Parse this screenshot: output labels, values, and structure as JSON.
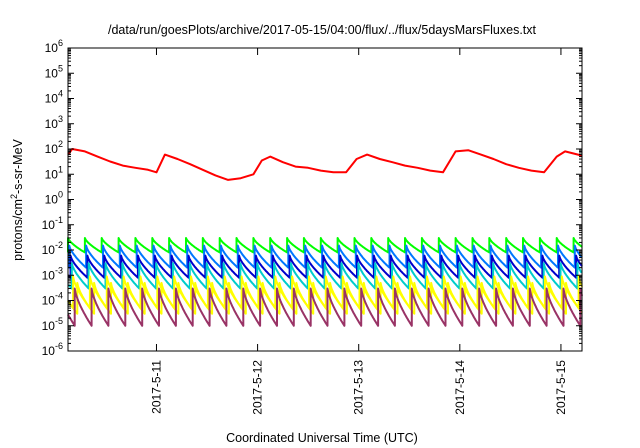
{
  "chart_data": {
    "type": "line",
    "title": "/data/run/goesPlots/archive/2017-05-15/04:00/flux/../flux/5daysMarsFluxes.txt",
    "xlabel": "Coordinated Universal Time (UTC)",
    "ylabel_parts": [
      "protons/cm",
      "2",
      "-s-sr-MeV"
    ],
    "yscale": "log",
    "ylim": [
      1e-06,
      1000000.0
    ],
    "y_ticks": [
      {
        "exp": "-6"
      },
      {
        "exp": "-5"
      },
      {
        "exp": "-4"
      },
      {
        "exp": "-3"
      },
      {
        "exp": "-2"
      },
      {
        "exp": "-1"
      },
      {
        "exp": "0"
      },
      {
        "exp": "1"
      },
      {
        "exp": "2"
      },
      {
        "exp": "3"
      },
      {
        "exp": "4"
      },
      {
        "exp": "5"
      },
      {
        "exp": "6"
      }
    ],
    "y_tick_base": "10",
    "xlim": [
      "2017-05-10T03:00",
      "2017-05-15T05:00"
    ],
    "x_ticks": [
      {
        "date": "2017-05-11T00:00",
        "label": "2017-5-11"
      },
      {
        "date": "2017-05-12T00:00",
        "label": "2017-5-12"
      },
      {
        "date": "2017-05-13T00:00",
        "label": "2017-5-13"
      },
      {
        "date": "2017-05-14T00:00",
        "label": "2017-5-14"
      },
      {
        "date": "2017-05-15T00:00",
        "label": "2017-5-15"
      }
    ],
    "grid": false,
    "legend": "none",
    "series": [
      {
        "color": "#ff0000",
        "style": "steps",
        "points": [
          [
            "2017-05-10T03:00",
            60
          ],
          [
            "2017-05-10T04:00",
            100
          ],
          [
            "2017-05-10T07:00",
            80
          ],
          [
            "2017-05-10T10:00",
            50
          ],
          [
            "2017-05-10T13:00",
            32
          ],
          [
            "2017-05-10T16:00",
            22
          ],
          [
            "2017-05-10T19:00",
            18
          ],
          [
            "2017-05-10T22:00",
            15
          ],
          [
            "2017-05-11T00:00",
            12
          ],
          [
            "2017-05-11T02:00",
            60
          ],
          [
            "2017-05-11T05:00",
            40
          ],
          [
            "2017-05-11T08:00",
            25
          ],
          [
            "2017-05-11T11:00",
            15
          ],
          [
            "2017-05-11T14:00",
            9
          ],
          [
            "2017-05-11T17:00",
            6
          ],
          [
            "2017-05-11T20:00",
            7
          ],
          [
            "2017-05-11T23:00",
            10
          ],
          [
            "2017-05-12T01:00",
            35
          ],
          [
            "2017-05-12T03:00",
            50
          ],
          [
            "2017-05-12T06:00",
            30
          ],
          [
            "2017-05-12T09:00",
            20
          ],
          [
            "2017-05-12T12:00",
            18
          ],
          [
            "2017-05-12T15:00",
            14
          ],
          [
            "2017-05-12T18:00",
            12
          ],
          [
            "2017-05-12T21:00",
            12
          ],
          [
            "2017-05-12T23:30",
            40
          ],
          [
            "2017-05-13T02:00",
            60
          ],
          [
            "2017-05-13T05:00",
            40
          ],
          [
            "2017-05-13T08:00",
            30
          ],
          [
            "2017-05-13T11:00",
            22
          ],
          [
            "2017-05-13T14:00",
            18
          ],
          [
            "2017-05-13T17:00",
            14
          ],
          [
            "2017-05-13T20:00",
            12
          ],
          [
            "2017-05-13T23:00",
            80
          ],
          [
            "2017-05-14T02:00",
            90
          ],
          [
            "2017-05-14T05:00",
            60
          ],
          [
            "2017-05-14T08:00",
            40
          ],
          [
            "2017-05-14T11:00",
            25
          ],
          [
            "2017-05-14T14:00",
            18
          ],
          [
            "2017-05-14T17:00",
            14
          ],
          [
            "2017-05-14T20:00",
            12
          ],
          [
            "2017-05-14T23:00",
            50
          ],
          [
            "2017-05-15T01:00",
            80
          ],
          [
            "2017-05-15T05:00",
            55
          ]
        ]
      },
      {
        "color": "#00ff00",
        "style": "sawtooth",
        "period_hours": 4,
        "peak": 0.03,
        "trough": 0.008,
        "phase_hours": 0
      },
      {
        "color": "#0077ff",
        "style": "sawtooth",
        "period_hours": 4,
        "peak": 0.015,
        "trough": 0.002,
        "phase_hours": 0.3
      },
      {
        "color": "#0000cc",
        "style": "sawtooth",
        "period_hours": 4,
        "peak": 0.006,
        "trough": 0.0008,
        "phase_hours": 0.6
      },
      {
        "color": "#00cccc",
        "style": "sawtooth",
        "period_hours": 4,
        "peak": 0.003,
        "trough": 0.0003,
        "phase_hours": 0.9
      },
      {
        "color": "#ffff00",
        "style": "sawtooth",
        "period_hours": 4,
        "peak": 0.0009,
        "trough": 5e-05,
        "phase_hours": 1.2
      },
      {
        "color": "#ffff00",
        "style": "sawtooth",
        "period_hours": 4,
        "peak": 0.0005,
        "trough": 3e-05,
        "phase_hours": 2.2
      },
      {
        "color": "#993366",
        "style": "sawtooth",
        "period_hours": 4,
        "peak": 0.0003,
        "trough": 1e-05,
        "phase_hours": 1.6
      }
    ]
  }
}
